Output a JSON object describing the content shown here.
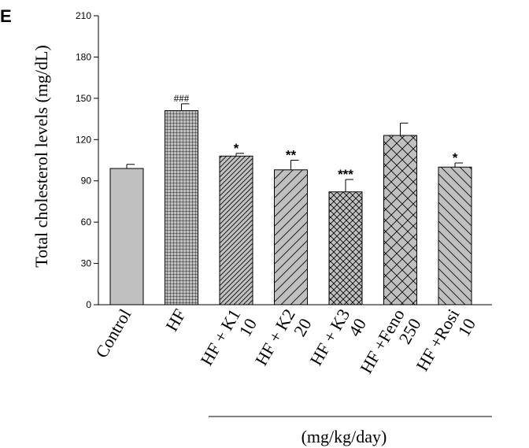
{
  "panel_letter": "E",
  "unit_note": "(mg/kg/day)",
  "chart_data": {
    "type": "bar",
    "ylabel": "Total cholesterol levels (mg/dL)",
    "xlabel": "",
    "ylim": [
      0,
      210
    ],
    "yticks": [
      0,
      30,
      60,
      90,
      120,
      150,
      180,
      210
    ],
    "grid": false,
    "categories": [
      {
        "line1": "Control",
        "line2": ""
      },
      {
        "line1": "HF",
        "line2": ""
      },
      {
        "line1": "HF + K1",
        "line2": "10"
      },
      {
        "line1": "HF + K2",
        "line2": "20"
      },
      {
        "line1": "HF + K3",
        "line2": "40"
      },
      {
        "line1": "HF +Feno",
        "line2": "250"
      },
      {
        "line1": "HF +Rosi",
        "line2": "10"
      }
    ],
    "values": [
      99,
      141,
      108,
      98,
      82,
      123,
      100
    ],
    "errors": [
      3,
      5,
      2,
      7,
      9,
      9,
      3
    ],
    "significance": [
      "",
      "###",
      "*",
      "**",
      "***",
      "",
      "*"
    ],
    "patterns": [
      "solid",
      "grid",
      "diag-right-dense",
      "diag-right",
      "crosshatch",
      "crosshatch-wide",
      "diag-left"
    ],
    "bar_fill": "#c0c0c0",
    "line_color": "#000000"
  }
}
